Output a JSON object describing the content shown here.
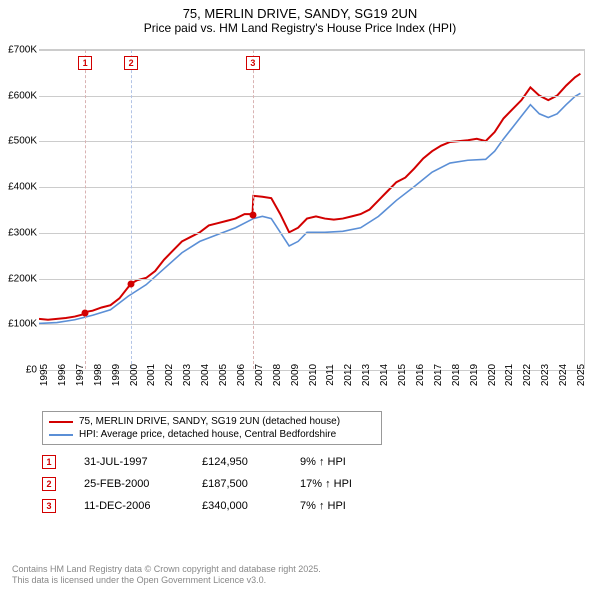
{
  "title": {
    "main": "75, MERLIN DRIVE, SANDY, SG19 2UN",
    "sub": "Price paid vs. HM Land Registry's House Price Index (HPI)"
  },
  "chart": {
    "type": "line",
    "x_domain": [
      1995,
      2025.5
    ],
    "y_domain": [
      0,
      700000
    ],
    "y_ticks": [
      0,
      100000,
      200000,
      300000,
      400000,
      500000,
      600000,
      700000
    ],
    "y_tick_labels": [
      "£0",
      "£100K",
      "£200K",
      "£300K",
      "£400K",
      "£500K",
      "£600K",
      "£700K"
    ],
    "x_ticks": [
      1995,
      1996,
      1997,
      1998,
      1999,
      2000,
      2001,
      2002,
      2003,
      2004,
      2005,
      2006,
      2007,
      2008,
      2009,
      2010,
      2011,
      2012,
      2013,
      2014,
      2015,
      2016,
      2017,
      2018,
      2019,
      2020,
      2021,
      2022,
      2023,
      2024,
      2025
    ],
    "grid_color": "#cccccc",
    "background_color": "#ffffff",
    "series": [
      {
        "name": "price_paid",
        "label": "75, MERLIN DRIVE, SANDY, SG19 2UN (detached house)",
        "color": "#d20000",
        "width": 2,
        "points": [
          [
            1995.0,
            110000
          ],
          [
            1995.5,
            108000
          ],
          [
            1996.0,
            110000
          ],
          [
            1996.5,
            112000
          ],
          [
            1997.0,
            115000
          ],
          [
            1997.5,
            120000
          ],
          [
            1997.58,
            124950
          ],
          [
            1998.0,
            128000
          ],
          [
            1998.5,
            135000
          ],
          [
            1999.0,
            140000
          ],
          [
            1999.5,
            155000
          ],
          [
            2000.0,
            180000
          ],
          [
            2000.15,
            187500
          ],
          [
            2000.5,
            195000
          ],
          [
            2001.0,
            200000
          ],
          [
            2001.5,
            215000
          ],
          [
            2002.0,
            240000
          ],
          [
            2002.5,
            260000
          ],
          [
            2003.0,
            280000
          ],
          [
            2003.5,
            290000
          ],
          [
            2004.0,
            300000
          ],
          [
            2004.5,
            315000
          ],
          [
            2005.0,
            320000
          ],
          [
            2005.5,
            325000
          ],
          [
            2006.0,
            330000
          ],
          [
            2006.5,
            340000
          ],
          [
            2006.95,
            340000
          ],
          [
            2007.0,
            380000
          ],
          [
            2007.5,
            378000
          ],
          [
            2008.0,
            375000
          ],
          [
            2008.5,
            340000
          ],
          [
            2009.0,
            300000
          ],
          [
            2009.5,
            310000
          ],
          [
            2010.0,
            330000
          ],
          [
            2010.5,
            335000
          ],
          [
            2011.0,
            330000
          ],
          [
            2011.5,
            328000
          ],
          [
            2012.0,
            330000
          ],
          [
            2012.5,
            335000
          ],
          [
            2013.0,
            340000
          ],
          [
            2013.5,
            350000
          ],
          [
            2014.0,
            370000
          ],
          [
            2014.5,
            390000
          ],
          [
            2015.0,
            410000
          ],
          [
            2015.5,
            420000
          ],
          [
            2016.0,
            440000
          ],
          [
            2016.5,
            462000
          ],
          [
            2017.0,
            478000
          ],
          [
            2017.5,
            490000
          ],
          [
            2018.0,
            498000
          ],
          [
            2018.5,
            500000
          ],
          [
            2019.0,
            502000
          ],
          [
            2019.5,
            505000
          ],
          [
            2020.0,
            500000
          ],
          [
            2020.5,
            520000
          ],
          [
            2021.0,
            550000
          ],
          [
            2021.5,
            570000
          ],
          [
            2022.0,
            590000
          ],
          [
            2022.5,
            618000
          ],
          [
            2023.0,
            600000
          ],
          [
            2023.5,
            590000
          ],
          [
            2024.0,
            600000
          ],
          [
            2024.5,
            622000
          ],
          [
            2025.0,
            640000
          ],
          [
            2025.3,
            648000
          ]
        ]
      },
      {
        "name": "hpi",
        "label": "HPI: Average price, detached house, Central Bedfordshire",
        "color": "#5b8fd6",
        "width": 1.6,
        "points": [
          [
            1995.0,
            100000
          ],
          [
            1996.0,
            102000
          ],
          [
            1997.0,
            108000
          ],
          [
            1998.0,
            118000
          ],
          [
            1999.0,
            130000
          ],
          [
            2000.0,
            160000
          ],
          [
            2001.0,
            185000
          ],
          [
            2002.0,
            220000
          ],
          [
            2003.0,
            255000
          ],
          [
            2004.0,
            280000
          ],
          [
            2005.0,
            295000
          ],
          [
            2006.0,
            310000
          ],
          [
            2007.0,
            330000
          ],
          [
            2007.5,
            335000
          ],
          [
            2008.0,
            330000
          ],
          [
            2008.5,
            300000
          ],
          [
            2009.0,
            270000
          ],
          [
            2009.5,
            280000
          ],
          [
            2010.0,
            300000
          ],
          [
            2011.0,
            300000
          ],
          [
            2012.0,
            302000
          ],
          [
            2013.0,
            310000
          ],
          [
            2014.0,
            335000
          ],
          [
            2015.0,
            370000
          ],
          [
            2016.0,
            400000
          ],
          [
            2017.0,
            432000
          ],
          [
            2018.0,
            452000
          ],
          [
            2019.0,
            458000
          ],
          [
            2020.0,
            460000
          ],
          [
            2020.5,
            478000
          ],
          [
            2021.0,
            505000
          ],
          [
            2021.5,
            530000
          ],
          [
            2022.0,
            555000
          ],
          [
            2022.5,
            580000
          ],
          [
            2023.0,
            560000
          ],
          [
            2023.5,
            552000
          ],
          [
            2024.0,
            560000
          ],
          [
            2024.5,
            580000
          ],
          [
            2025.0,
            598000
          ],
          [
            2025.3,
            605000
          ]
        ]
      }
    ],
    "markers": [
      {
        "n": "1",
        "x": 1997.58,
        "y": 124950,
        "line_color": "#d9b3b3"
      },
      {
        "n": "2",
        "x": 2000.15,
        "y": 187500,
        "line_color": "#b3c4e6"
      },
      {
        "n": "3",
        "x": 2006.95,
        "y": 340000,
        "line_color": "#d9b3b3"
      }
    ]
  },
  "legend": [
    {
      "color": "#d20000",
      "label": "75, MERLIN DRIVE, SANDY, SG19 2UN (detached house)"
    },
    {
      "color": "#5b8fd6",
      "label": "HPI: Average price, detached house, Central Bedfordshire"
    }
  ],
  "sales": [
    {
      "n": "1",
      "date": "31-JUL-1997",
      "price": "£124,950",
      "delta": "9% ↑ HPI"
    },
    {
      "n": "2",
      "date": "25-FEB-2000",
      "price": "£187,500",
      "delta": "17% ↑ HPI"
    },
    {
      "n": "3",
      "date": "11-DEC-2006",
      "price": "£340,000",
      "delta": "7% ↑ HPI"
    }
  ],
  "footer": {
    "line1": "Contains HM Land Registry data © Crown copyright and database right 2025.",
    "line2": "This data is licensed under the Open Government Licence v3.0."
  }
}
